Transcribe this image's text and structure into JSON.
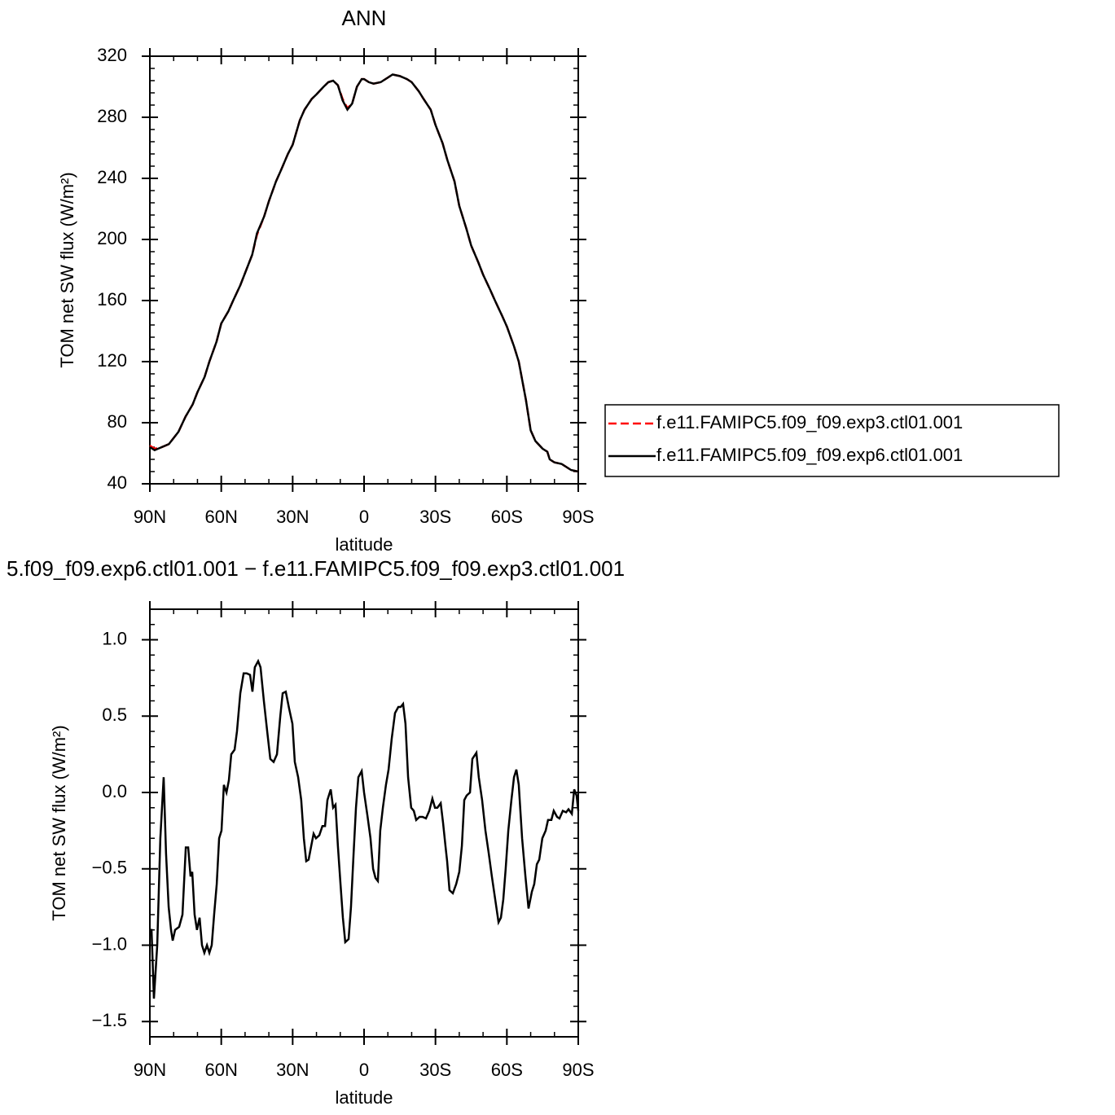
{
  "chart_data": [
    {
      "type": "line",
      "title": "ANN",
      "xlabel": "latitude",
      "ylabel": "TOM net SW flux (W/m²)",
      "xlim": [
        90,
        -90
      ],
      "xticks": [
        {
          "value": 90,
          "label": "90N"
        },
        {
          "value": 60,
          "label": "60N"
        },
        {
          "value": 30,
          "label": "30N"
        },
        0,
        {
          "value": -30,
          "label": "30S"
        },
        {
          "value": -60,
          "label": "60S"
        },
        {
          "value": -90,
          "label": "90S"
        }
      ],
      "ylim": [
        40,
        320
      ],
      "yticks": [
        40,
        80,
        120,
        160,
        200,
        240,
        280,
        320
      ],
      "legend": "right",
      "x": [
        90,
        88,
        85,
        82,
        80,
        78,
        75,
        72,
        70,
        67,
        65,
        62,
        60,
        57,
        55,
        52,
        50,
        47,
        45,
        42,
        40,
        37,
        35,
        32,
        30,
        27,
        25,
        22,
        20,
        17,
        15,
        13,
        11,
        9,
        7,
        5,
        3,
        1,
        0,
        -2,
        -4,
        -7,
        -10,
        -12,
        -15,
        -18,
        -20,
        -23,
        -25,
        -28,
        -30,
        -33,
        -35,
        -38,
        -40,
        -43,
        -45,
        -48,
        -50,
        -53,
        -55,
        -58,
        -60,
        -63,
        -65,
        -68,
        -70,
        -72,
        -75,
        -77,
        -78,
        -80,
        -83,
        -85,
        -87,
        -90
      ],
      "series": [
        {
          "name": "f.e11.FAMIPC5.f09_f09.exp3.ctl01.001",
          "color": "#ff0000",
          "line_style": "dashed",
          "values": [
            65,
            63,
            64,
            66,
            70,
            74,
            84,
            92,
            100,
            110,
            120,
            133,
            145,
            153,
            160,
            170,
            178,
            190,
            203,
            215,
            225,
            238,
            245,
            256,
            262,
            278,
            285,
            292,
            295,
            300,
            303,
            304,
            301,
            292,
            286,
            289,
            300,
            305,
            305,
            303,
            302,
            303,
            306,
            308,
            307,
            305,
            303,
            297,
            292,
            285,
            275,
            263,
            252,
            238,
            222,
            207,
            196,
            185,
            177,
            167,
            160,
            150,
            143,
            130,
            120,
            95,
            75,
            68,
            63,
            61,
            56,
            54,
            53,
            51,
            49,
            48
          ]
        },
        {
          "name": "f.e11.FAMIPC5.f09_f09.exp6.ctl01.001",
          "color": "#000000",
          "line_style": "solid",
          "values": [
            64,
            62,
            64,
            66,
            70,
            74,
            84,
            92,
            100,
            110,
            120,
            133,
            145,
            153,
            160,
            170,
            178,
            190,
            204,
            215,
            225,
            238,
            245,
            256,
            262,
            278,
            285,
            292,
            295,
            300,
            303,
            304,
            301,
            291,
            285,
            289,
            300,
            305,
            305,
            303,
            302,
            303,
            306,
            308,
            307,
            305,
            303,
            297,
            292,
            285,
            275,
            263,
            252,
            238,
            222,
            207,
            196,
            185,
            177,
            167,
            160,
            150,
            143,
            130,
            120,
            95,
            75,
            68,
            63,
            61,
            56,
            54,
            53,
            51,
            49,
            48
          ]
        }
      ]
    },
    {
      "type": "line",
      "title": "5.f09_f09.exp6.ctl01.001 − f.e11.FAMIPC5.f09_f09.exp3.ctl01.001",
      "xlabel": "latitude",
      "ylabel": "TOM net SW flux (W/m²)",
      "xlim": [
        90,
        -90
      ],
      "xticks": [
        {
          "value": 90,
          "label": "90N"
        },
        {
          "value": 60,
          "label": "60N"
        },
        {
          "value": 30,
          "label": "30N"
        },
        0,
        {
          "value": -30,
          "label": "30S"
        },
        {
          "value": -60,
          "label": "60S"
        },
        {
          "value": -90,
          "label": "90S"
        }
      ],
      "ylim": [
        -1.6,
        1.2
      ],
      "yticks": [
        {
          "value": -1.5,
          "label": "−1.5"
        },
        {
          "value": -1,
          "label": "−1.0"
        },
        {
          "value": -0.5,
          "label": "−0.5"
        },
        {
          "value": 0,
          "label": "0.0"
        },
        0.5,
        {
          "value": 1,
          "label": "1.0"
        }
      ],
      "color": "#000000",
      "x": [
        90,
        89.3,
        88.3,
        86.9,
        85.6,
        84.2,
        83.2,
        82.1,
        81.1,
        80.4,
        79.4,
        77.7,
        76.3,
        74.9,
        73.9,
        72.9,
        72.2,
        71.2,
        70.2,
        69.1,
        68.1,
        67.1,
        66.0,
        65.0,
        64.0,
        63.0,
        61.9,
        60.9,
        59.9,
        58.9,
        57.8,
        56.8,
        55.8,
        54.4,
        53.4,
        52.0,
        50.6,
        49.3,
        47.9,
        46.9,
        45.9,
        44.5,
        43.5,
        42.1,
        40.7,
        39.4,
        38.0,
        36.6,
        35.2,
        34.2,
        32.9,
        31.5,
        30.1,
        29.1,
        27.7,
        26.4,
        25.3,
        24.3,
        23.3,
        22.2,
        21.2,
        20.2,
        18.8,
        17.5,
        16.4,
        15.4,
        14.0,
        13.0,
        12.0,
        11.0,
        9.9,
        8.9,
        7.9,
        6.5,
        5.5,
        4.4,
        3.4,
        2.4,
        1.0,
        0.0,
        -1.4,
        -2.7,
        -3.8,
        -4.8,
        -5.8,
        -6.8,
        -7.9,
        -9.2,
        -10.3,
        -11.6,
        -13.0,
        -14.4,
        -15.4,
        -16.4,
        -17.4,
        -18.5,
        -19.8,
        -20.9,
        -21.9,
        -23.3,
        -24.6,
        -26.0,
        -27.4,
        -28.7,
        -29.8,
        -30.8,
        -32.2,
        -33.2,
        -34.2,
        -34.9,
        -35.9,
        -37.3,
        -38.7,
        -40.0,
        -41.1,
        -42.1,
        -43.1,
        -44.5,
        -45.5,
        -47.2,
        -48.2,
        -49.6,
        -51.0,
        -52.4,
        -53.7,
        -55.1,
        -56.5,
        -57.5,
        -58.5,
        -59.5,
        -60.6,
        -61.9,
        -63.0,
        -64.0,
        -65.0,
        -66.4,
        -67.8,
        -69.1,
        -70.5,
        -71.5,
        -72.6,
        -73.6,
        -74.9,
        -76.3,
        -77.3,
        -78.7,
        -79.7,
        -81.1,
        -82.1,
        -83.5,
        -84.9,
        -85.9,
        -87.3,
        -88.3,
        -89.3,
        -90
      ],
      "values": [
        -0.9,
        -0.9,
        -1.35,
        -1.0,
        -0.3,
        0.1,
        -0.4,
        -0.75,
        -0.9,
        -0.97,
        -0.9,
        -0.88,
        -0.8,
        -0.36,
        -0.36,
        -0.55,
        -0.52,
        -0.8,
        -0.9,
        -0.82,
        -1.0,
        -1.05,
        -1.0,
        -1.05,
        -1.0,
        -0.8,
        -0.6,
        -0.3,
        -0.25,
        0.05,
        0.0,
        0.08,
        0.25,
        0.28,
        0.4,
        0.65,
        0.78,
        0.78,
        0.77,
        0.66,
        0.82,
        0.86,
        0.82,
        0.6,
        0.4,
        0.22,
        0.2,
        0.25,
        0.5,
        0.65,
        0.66,
        0.55,
        0.45,
        0.2,
        0.1,
        -0.05,
        -0.3,
        -0.45,
        -0.44,
        -0.35,
        -0.27,
        -0.3,
        -0.28,
        -0.22,
        -0.22,
        -0.05,
        0.02,
        -0.1,
        -0.08,
        -0.35,
        -0.6,
        -0.82,
        -0.98,
        -0.96,
        -0.75,
        -0.4,
        -0.1,
        0.1,
        0.14,
        0.0,
        -0.15,
        -0.3,
        -0.5,
        -0.56,
        -0.58,
        -0.25,
        -0.1,
        0.05,
        0.15,
        0.35,
        0.52,
        0.56,
        0.56,
        0.58,
        0.45,
        0.1,
        -0.1,
        -0.12,
        -0.18,
        -0.16,
        -0.16,
        -0.17,
        -0.12,
        -0.04,
        -0.1,
        -0.1,
        -0.07,
        -0.2,
        -0.35,
        -0.45,
        -0.64,
        -0.66,
        -0.6,
        -0.52,
        -0.35,
        -0.05,
        -0.02,
        0.0,
        0.22,
        0.26,
        0.1,
        -0.05,
        -0.25,
        -0.4,
        -0.55,
        -0.7,
        -0.85,
        -0.82,
        -0.7,
        -0.5,
        -0.25,
        -0.05,
        0.1,
        0.15,
        0.05,
        -0.3,
        -0.55,
        -0.76,
        -0.65,
        -0.6,
        -0.47,
        -0.44,
        -0.3,
        -0.25,
        -0.18,
        -0.18,
        -0.12,
        -0.16,
        -0.17,
        -0.12,
        -0.13,
        -0.11,
        -0.14,
        0.02,
        -0.02,
        -0.12
      ]
    }
  ]
}
